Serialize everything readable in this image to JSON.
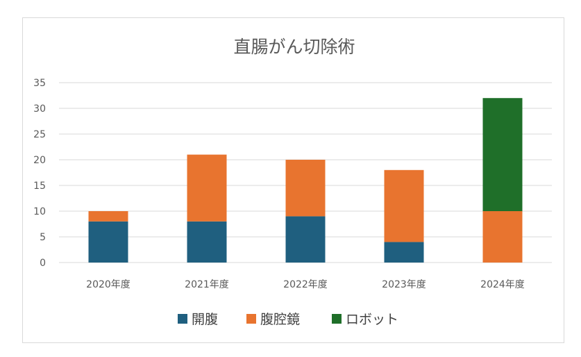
{
  "chart_data": {
    "type": "bar",
    "stacked": true,
    "title": "直腸がん切除術",
    "categories": [
      "2020年度",
      "2021年度",
      "2022年度",
      "2023年度",
      "2024年度"
    ],
    "series": [
      {
        "name": "開腹",
        "color": "#1f5f7f",
        "values": [
          8,
          8,
          9,
          4,
          0
        ]
      },
      {
        "name": "腹腔鏡",
        "color": "#e8742f",
        "values": [
          2,
          13,
          11,
          14,
          10
        ]
      },
      {
        "name": "ロボット",
        "color": "#1f6f29",
        "values": [
          0,
          0,
          0,
          0,
          22
        ]
      }
    ],
    "ylim": [
      0,
      35
    ],
    "yticks": [
      0,
      5,
      10,
      15,
      20,
      25,
      30,
      35
    ],
    "grid": true,
    "legend_position": "bottom"
  }
}
